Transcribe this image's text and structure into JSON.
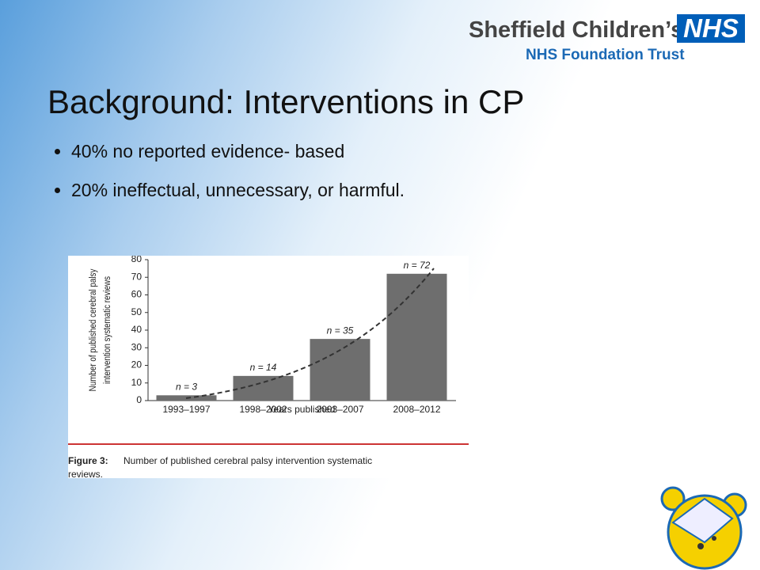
{
  "header": {
    "org": "Sheffield Children’s",
    "badge": "NHS",
    "trust": "NHS Foundation Trust"
  },
  "title": "Background: Interventions in CP",
  "bullets": [
    "40% no reported evidence- based",
    "20% ineffectual, unnecessary, or harmful."
  ],
  "chart_data": {
    "type": "bar",
    "categories": [
      "1993–1997",
      "1998–2002",
      "2003–2007",
      "2008–2012"
    ],
    "values": [
      3,
      14,
      35,
      72
    ],
    "value_labels": [
      "n = 3",
      "n = 14",
      "n = 35",
      "n = 72"
    ],
    "color": "#6e6e6e",
    "ylim": [
      0,
      80
    ],
    "yticks": [
      0,
      10,
      20,
      30,
      40,
      50,
      60,
      70,
      80
    ],
    "ylabel": [
      "Number of published cerebral palsy",
      "intervention systematic reviews"
    ],
    "xlabel": "Years published",
    "caption_label": "Figure 3:",
    "caption": [
      "Number of published cerebral palsy intervention systematic",
      "reviews."
    ]
  }
}
